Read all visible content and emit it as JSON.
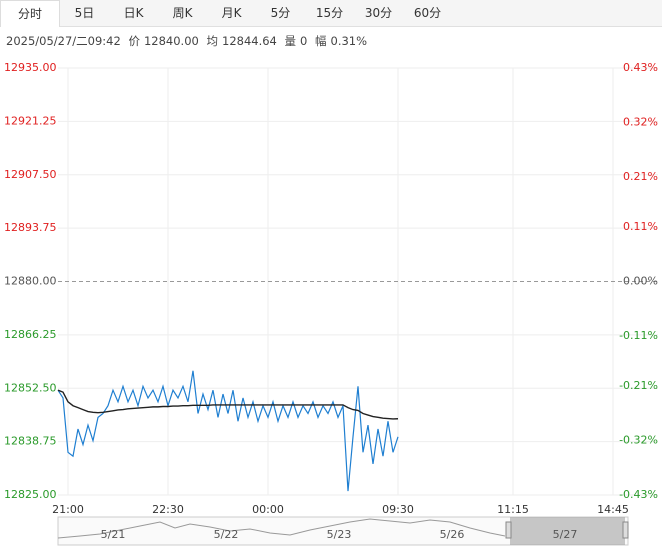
{
  "tabs": [
    "分时",
    "5日",
    "日K",
    "周K",
    "月K",
    "5分",
    "15分",
    "30分",
    "60分"
  ],
  "info": {
    "datetime": "2025/05/27/二09:42",
    "price_label": "价",
    "price": "12840.00",
    "avg_label": "均",
    "avg": "12844.64",
    "vol_label": "量",
    "vol": "0",
    "amp_label": "幅",
    "amp": "0.31%"
  },
  "navigator": {
    "labels": [
      "5/21",
      "5/22",
      "5/23",
      "5/26",
      "5/27"
    ]
  },
  "chart_data": {
    "type": "line",
    "xlim": [
      0,
      120
    ],
    "xticks": [
      {
        "value": 2,
        "label": "21:00"
      },
      {
        "value": 22,
        "label": "22:30"
      },
      {
        "value": 42,
        "label": "00:00"
      },
      {
        "value": 68,
        "label": "09:30"
      },
      {
        "value": 91,
        "label": "11:15"
      },
      {
        "value": 111,
        "label": "14:45"
      }
    ],
    "ylim": [
      12825,
      12935
    ],
    "yticks": [
      {
        "value": 12935,
        "label": "12935.00"
      },
      {
        "value": 12921.25,
        "label": "12921.25"
      },
      {
        "value": 12907.5,
        "label": "12907.50"
      },
      {
        "value": 12893.75,
        "label": "12893.75"
      },
      {
        "value": 12880,
        "label": "12880.00"
      },
      {
        "value": 12866.25,
        "label": "12866.25"
      },
      {
        "value": 12852.5,
        "label": "12852.50"
      },
      {
        "value": 12838.75,
        "label": "12838.75"
      },
      {
        "value": 12825,
        "label": "12825.00"
      }
    ],
    "y2lim": [
      -0.43,
      0.43
    ],
    "y2ticks": [
      {
        "value": 0.43,
        "label": "0.43%"
      },
      {
        "value": 0.32,
        "label": "0.32%"
      },
      {
        "value": 0.21,
        "label": "0.21%"
      },
      {
        "value": 0.11,
        "label": "0.11%"
      },
      {
        "value": 0,
        "label": "0.00%"
      },
      {
        "value": -0.11,
        "label": "-0.11%"
      },
      {
        "value": -0.21,
        "label": "-0.21%"
      },
      {
        "value": -0.32,
        "label": "-0.32%"
      },
      {
        "value": -0.43,
        "label": "-0.43%"
      }
    ],
    "up_color": "#e02020",
    "down_color": "#2a9a2a",
    "flat_color": "#555555",
    "grid": true,
    "series": [
      {
        "name": "价",
        "color": "#1f7fd1",
        "values": [
          12852,
          12850,
          12836,
          12835,
          12842,
          12838,
          12843,
          12839,
          12845,
          12846,
          12848,
          12852,
          12849,
          12853,
          12849,
          12852,
          12848,
          12853,
          12850,
          12852,
          12849,
          12853,
          12848,
          12852,
          12850,
          12853,
          12849,
          12857,
          12846,
          12851,
          12847,
          12852,
          12845,
          12851,
          12846,
          12852,
          12844,
          12850,
          12845,
          12849,
          12844,
          12848,
          12845,
          12849,
          12844,
          12848,
          12845,
          12849,
          12845,
          12848,
          12846,
          12849,
          12845,
          12848,
          12846,
          12849,
          12845,
          12848,
          12826,
          12840,
          12853,
          12836,
          12843,
          12833,
          12842,
          12835,
          12844,
          12836,
          12840
        ]
      },
      {
        "name": "均",
        "color": "#222222",
        "values": [
          12852,
          12851.5,
          12849,
          12848,
          12847.5,
          12847,
          12846.5,
          12846.3,
          12846.2,
          12846.3,
          12846.5,
          12846.7,
          12846.9,
          12847,
          12847.2,
          12847.3,
          12847.4,
          12847.5,
          12847.6,
          12847.7,
          12847.7,
          12847.8,
          12847.8,
          12847.9,
          12847.9,
          12848,
          12848,
          12848.1,
          12848.1,
          12848.1,
          12848.1,
          12848.2,
          12848.2,
          12848.2,
          12848.2,
          12848.2,
          12848.2,
          12848.2,
          12848.2,
          12848.2,
          12848.2,
          12848.2,
          12848.2,
          12848.2,
          12848.2,
          12848.2,
          12848.2,
          12848.2,
          12848.2,
          12848.2,
          12848.2,
          12848.2,
          12848.2,
          12848.2,
          12848.2,
          12848.2,
          12848.2,
          12848.2,
          12847.5,
          12847,
          12846.8,
          12846,
          12845.6,
          12845.2,
          12845,
          12844.8,
          12844.7,
          12844.6,
          12844.64
        ]
      }
    ]
  }
}
